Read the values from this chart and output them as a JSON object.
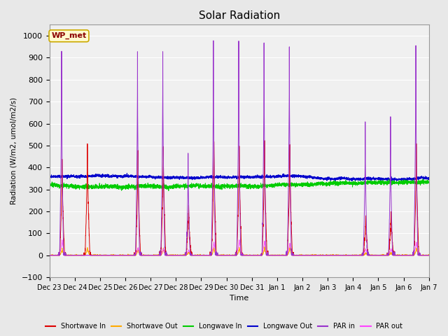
{
  "title": "Solar Radiation",
  "ylabel": "Radiation (W/m2, umol/m2/s)",
  "xlabel": "Time",
  "station_label": "WP_met",
  "ylim": [
    -100,
    1050
  ],
  "yticks": [
    -100,
    0,
    100,
    200,
    300,
    400,
    500,
    600,
    700,
    800,
    900,
    1000
  ],
  "bg_color": "#e8e8e8",
  "plot_bg": "#f0f0f0",
  "figsize": [
    6.4,
    4.8
  ],
  "dpi": 100,
  "series": {
    "shortwave_in": {
      "color": "#dd0000",
      "label": "Shortwave In"
    },
    "shortwave_out": {
      "color": "#ffaa00",
      "label": "Shortwave Out"
    },
    "longwave_in": {
      "color": "#00cc00",
      "label": "Longwave In"
    },
    "longwave_out": {
      "color": "#0000cc",
      "label": "Longwave Out"
    },
    "par_in": {
      "color": "#9933cc",
      "label": "PAR in"
    },
    "par_out": {
      "color": "#ff44ff",
      "label": "PAR out"
    }
  },
  "day_labels": [
    "Dec 23",
    "Dec 24",
    "Dec 25",
    "Dec 26",
    "Dec 27",
    "Dec 28",
    "Dec 29",
    "Dec 30",
    "Dec 31",
    "Jan 1",
    "Jan 2",
    "Jan 3",
    "Jan 4",
    "Jan 5",
    "Jan 6",
    "Jan 7"
  ],
  "n_days": 15,
  "pts_per_day": 288,
  "seed": 42,
  "par_in_peaks": [
    940,
    0,
    0,
    910,
    920,
    460,
    975,
    965,
    965,
    950,
    0,
    0,
    600,
    620,
    950
  ],
  "sw_in_peaks": [
    430,
    510,
    0,
    480,
    490,
    230,
    520,
    505,
    525,
    510,
    0,
    0,
    180,
    200,
    500
  ],
  "par_out_peaks": [
    70,
    0,
    0,
    35,
    30,
    25,
    60,
    70,
    65,
    55,
    0,
    0,
    30,
    30,
    60
  ],
  "lw_in_base": 320,
  "lw_out_base": 355
}
